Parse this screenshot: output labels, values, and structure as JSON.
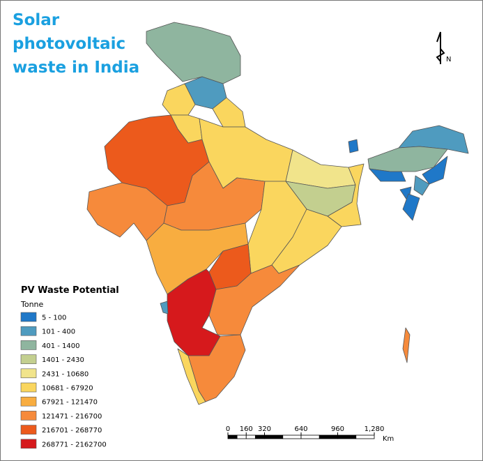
{
  "title_lines": [
    "Solar",
    "photovoltaic",
    "waste in India"
  ],
  "north": "N",
  "legend": {
    "title": "PV Waste Potential",
    "subtitle": "Tonne",
    "classes": [
      {
        "label": "5 - 100",
        "color": "#1f78c8"
      },
      {
        "label": "101 - 400",
        "color": "#4f9bbf"
      },
      {
        "label": "401 - 1400",
        "color": "#8fb59f"
      },
      {
        "label": "1401 - 2430",
        "color": "#c3cf8f"
      },
      {
        "label": "2431 - 10680",
        "color": "#f1e48b"
      },
      {
        "label": "10681 - 67920",
        "color": "#fad65e"
      },
      {
        "label": "67921 - 121470",
        "color": "#f8ad40"
      },
      {
        "label": "121471 - 216700",
        "color": "#f68a3b"
      },
      {
        "label": "216701 - 268770",
        "color": "#ec5a1c"
      },
      {
        "label": "268771 - 2162700",
        "color": "#d6191c"
      }
    ]
  },
  "scale": {
    "ticks": [
      0,
      160,
      320,
      640,
      960,
      {
        "value": 1280,
        "label": "1,280"
      }
    ],
    "unit": "Km"
  }
}
